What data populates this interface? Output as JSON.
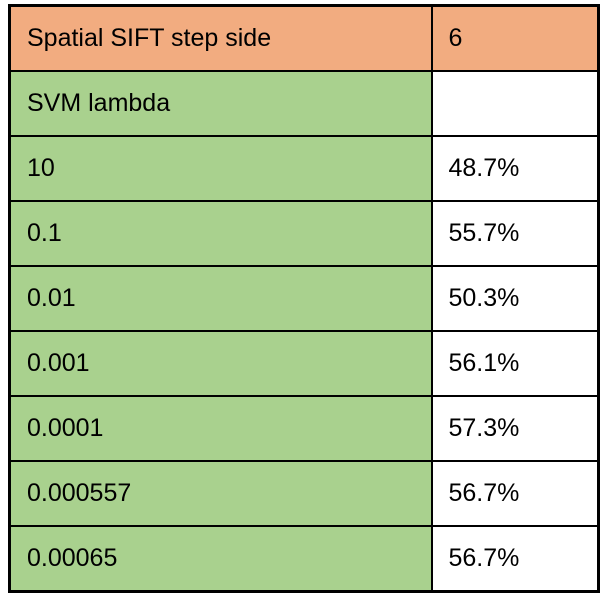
{
  "table": {
    "header": {
      "label": "Spatial SIFT step side",
      "value": "6"
    },
    "subheader": {
      "label": "SVM lambda",
      "value": ""
    },
    "rows": [
      {
        "lambda": "10",
        "accuracy": "48.7%"
      },
      {
        "lambda": "0.1",
        "accuracy": "55.7%"
      },
      {
        "lambda": "0.01",
        "accuracy": "50.3%"
      },
      {
        "lambda": "0.001",
        "accuracy": "56.1%"
      },
      {
        "lambda": "0.0001",
        "accuracy": "57.3%"
      },
      {
        "lambda": "0.000557",
        "accuracy": "56.7%"
      },
      {
        "lambda": "0.00065",
        "accuracy": "56.7%"
      }
    ],
    "colors": {
      "header_bg": "#F2AC80",
      "row_label_bg": "#A9D18E",
      "value_bg": "#FFFFFF",
      "border": "#000000",
      "text": "#000000"
    }
  }
}
